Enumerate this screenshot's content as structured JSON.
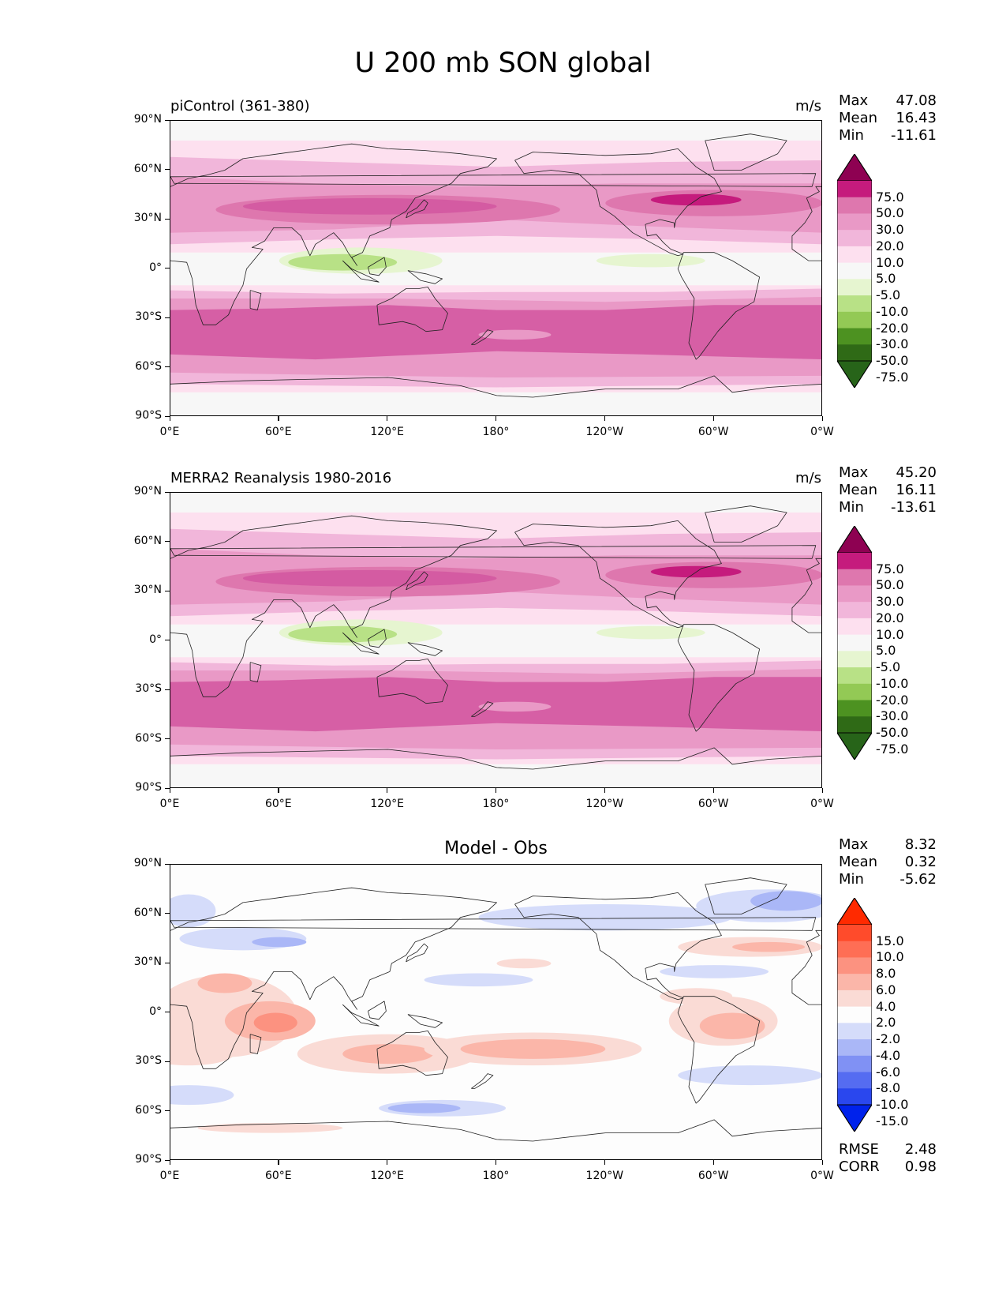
{
  "figure": {
    "title": "U 200 mb SON global"
  },
  "panels": [
    {
      "title": "piControl (361-380)",
      "units": "m/s",
      "stats": [
        {
          "label": "Max",
          "value": "47.08"
        },
        {
          "label": "Mean",
          "value": "16.43"
        },
        {
          "label": "Min",
          "value": "-11.61"
        }
      ],
      "colorbar": {
        "labels": [
          "75.0",
          "50.0",
          "30.0",
          "20.0",
          "10.0",
          "5.0",
          "-5.0",
          "-10.0",
          "-20.0",
          "-30.0",
          "-50.0",
          "-75.0"
        ],
        "colors": [
          "#8e0152",
          "#c51b7d",
          "#de77ae",
          "#e999c6",
          "#f1b6da",
          "#fde0ef",
          "#f7f7f7",
          "#e6f5d0",
          "#b8e186",
          "#93c955",
          "#4d9221",
          "#2f6a16",
          "#276419"
        ]
      }
    },
    {
      "title": "MERRA2 Reanalysis 1980-2016",
      "units": "m/s",
      "stats": [
        {
          "label": "Max",
          "value": "45.20"
        },
        {
          "label": "Mean",
          "value": "16.11"
        },
        {
          "label": "Min",
          "value": "-13.61"
        }
      ],
      "colorbar": {
        "labels": [
          "75.0",
          "50.0",
          "30.0",
          "20.0",
          "10.0",
          "5.0",
          "-5.0",
          "-10.0",
          "-20.0",
          "-30.0",
          "-50.0",
          "-75.0"
        ],
        "colors": [
          "#8e0152",
          "#c51b7d",
          "#de77ae",
          "#e999c6",
          "#f1b6da",
          "#fde0ef",
          "#f7f7f7",
          "#e6f5d0",
          "#b8e186",
          "#93c955",
          "#4d9221",
          "#2f6a16",
          "#276419"
        ]
      }
    },
    {
      "title": "Model - Obs",
      "units": "",
      "stats": [
        {
          "label": "Max",
          "value": "8.32"
        },
        {
          "label": "Mean",
          "value": "0.32"
        },
        {
          "label": "Min",
          "value": "-5.62"
        }
      ],
      "colorbar": {
        "labels": [
          "15.0",
          "10.0",
          "8.0",
          "6.0",
          "4.0",
          "2.0",
          "-2.0",
          "-4.0",
          "-6.0",
          "-8.0",
          "-10.0",
          "-15.0"
        ],
        "colors": [
          "#ff2a00",
          "#ff4b2b",
          "#fe6e55",
          "#fc9280",
          "#fbb6a9",
          "#fadbd5",
          "#fdfdfd",
          "#d5dcfa",
          "#aab7f7",
          "#8091f4",
          "#556cf1",
          "#2a47ee",
          "#0022eb"
        ]
      },
      "metrics": [
        {
          "label": "RMSE",
          "value": "2.48"
        },
        {
          "label": "CORR",
          "value": "0.98"
        }
      ]
    }
  ],
  "axes": {
    "y_ticks": [
      "90°N",
      "60°N",
      "30°N",
      "0°",
      "30°S",
      "60°S",
      "90°S"
    ],
    "x_ticks": [
      "0°E",
      "60°E",
      "120°E",
      "180°",
      "120°W",
      "60°W",
      "0°W"
    ]
  }
}
